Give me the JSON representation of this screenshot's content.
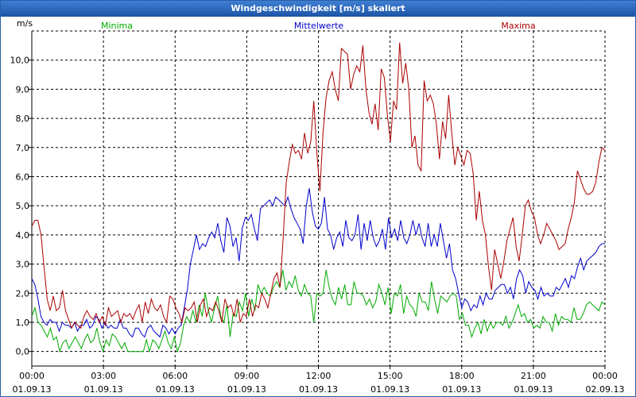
{
  "window": {
    "title": "Windgeschwindigkeit [m/s] skaliert"
  },
  "chart_data": {
    "type": "line",
    "title": "Windgeschwindigkeit [m/s] skaliert",
    "ylabel": "m/s",
    "ylim": [
      -0.5,
      11.0
    ],
    "yticks": [
      0,
      1,
      2,
      3,
      4,
      5,
      6,
      7,
      8,
      9,
      10
    ],
    "ytick_labels": [
      "0,0",
      "1,0",
      "2,0",
      "3,0",
      "4,0",
      "5,0",
      "6,0",
      "7,0",
      "8,0",
      "9,0",
      "10,0"
    ],
    "xlim": [
      0,
      24
    ],
    "xticks": [
      0,
      3,
      6,
      9,
      12,
      15,
      18,
      21,
      24
    ],
    "xtick_times": [
      "00:00",
      "03:00",
      "06:00",
      "09:00",
      "12:00",
      "15:00",
      "18:00",
      "21:00",
      "00:00"
    ],
    "xtick_dates": [
      "01.09.13",
      "01.09.13",
      "01.09.13",
      "01.09.13",
      "01.09.13",
      "01.09.13",
      "01.09.13",
      "01.09.13",
      "02.09.13"
    ],
    "grid": true,
    "series": [
      {
        "name": "Minima",
        "color": "#00aa00",
        "values": [
          1.2,
          1.5,
          1.0,
          0.9,
          0.7,
          0.5,
          0.8,
          0.4,
          0.5,
          0.0,
          0.3,
          0.4,
          0.1,
          0.3,
          0.5,
          0.3,
          0.1,
          0.4,
          0.6,
          0.3,
          0.4,
          0.8,
          0.3,
          0.0,
          0.4,
          0.2,
          0.6,
          0.5,
          0.3,
          0.1,
          0.3,
          0.0,
          0.0,
          0.0,
          0.0,
          0.0,
          0.0,
          0.4,
          0.0,
          0.4,
          0.3,
          0.1,
          0.4,
          0.7,
          0.3,
          0.1,
          0.5,
          0.0,
          0.3,
          0.9,
          1.2,
          1.0,
          1.4,
          1.0,
          1.6,
          1.2,
          2.0,
          1.4,
          1.0,
          1.5,
          1.9,
          1.2,
          1.0,
          1.6,
          0.5,
          1.3,
          1.2,
          1.7,
          1.4,
          2.0,
          1.2,
          1.8,
          1.4,
          2.3,
          2.0,
          2.2,
          2.0,
          1.9,
          2.2,
          2.4,
          2.2,
          2.8,
          2.1,
          2.4,
          2.2,
          2.6,
          2.1,
          1.9,
          2.3,
          2.0,
          1.9,
          1.0,
          2.0,
          1.9,
          2.0,
          2.8,
          2.2,
          1.8,
          1.6,
          2.2,
          1.8,
          2.3,
          1.6,
          1.6,
          2.4,
          2.0,
          2.0,
          1.9,
          1.6,
          1.8,
          1.5,
          1.7,
          2.3,
          2.0,
          1.6,
          2.2,
          1.3,
          2.0,
          1.9,
          2.3,
          1.3,
          1.9,
          1.6,
          1.5,
          1.2,
          2.0,
          1.7,
          1.7,
          1.4,
          2.4,
          1.8,
          1.3,
          1.9,
          1.8,
          1.7,
          1.9,
          2.0,
          1.9,
          1.1,
          1.3,
          0.9,
          0.9,
          0.5,
          0.8,
          1.0,
          0.6,
          1.1,
          0.7,
          1.0,
          0.8,
          1.0,
          1.0,
          0.9,
          1.2,
          0.8,
          1.0,
          1.3,
          1.6,
          1.2,
          1.3,
          1.0,
          1.1,
          0.8,
          0.9,
          0.8,
          1.2,
          1.0,
          1.0,
          0.7,
          1.3,
          0.9,
          1.2,
          1.1,
          1.1,
          1.0,
          1.5,
          1.1,
          1.1,
          1.3,
          1.6,
          1.7,
          1.6,
          1.5,
          1.4,
          1.7,
          1.6
        ]
      },
      {
        "name": "Mittelwerte",
        "color": "#0000cc",
        "values": [
          2.5,
          2.3,
          1.8,
          1.2,
          1.0,
          0.9,
          1.1,
          1.0,
          1.0,
          0.7,
          1.0,
          0.9,
          0.9,
          0.8,
          1.0,
          0.7,
          0.9,
          0.9,
          1.1,
          0.8,
          0.9,
          1.2,
          1.1,
          0.8,
          1.0,
          0.8,
          0.9,
          0.8,
          0.8,
          1.1,
          0.8,
          0.8,
          0.6,
          0.5,
          0.8,
          0.8,
          0.6,
          0.5,
          0.8,
          0.9,
          0.7,
          0.6,
          0.5,
          0.9,
          0.8,
          0.6,
          0.8,
          0.6,
          0.8,
          0.9,
          1.5,
          2.1,
          3.0,
          3.5,
          4.0,
          3.5,
          3.7,
          3.6,
          3.9,
          4.1,
          3.9,
          4.4,
          3.8,
          3.4,
          4.6,
          4.3,
          3.6,
          3.9,
          3.1,
          4.2,
          4.6,
          4.5,
          4.7,
          4.2,
          3.8,
          4.9,
          5.0,
          5.1,
          5.2,
          5.0,
          5.3,
          5.2,
          5.1,
          5.0,
          5.3,
          4.9,
          4.6,
          4.4,
          4.2,
          3.7,
          5.0,
          5.6,
          4.8,
          4.3,
          4.2,
          4.4,
          5.3,
          4.2,
          4.0,
          3.5,
          3.9,
          4.1,
          3.6,
          4.5,
          3.9,
          3.8,
          4.0,
          4.7,
          3.5,
          4.4,
          3.8,
          4.5,
          3.9,
          3.6,
          3.8,
          4.2,
          3.5,
          4.6,
          3.9,
          4.2,
          3.8,
          4.5,
          3.9,
          3.7,
          4.0,
          4.5,
          4.0,
          4.4,
          3.9,
          3.6,
          4.4,
          3.6,
          4.0,
          3.6,
          4.4,
          3.8,
          3.2,
          3.7,
          2.8,
          2.5,
          2.0,
          1.5,
          1.8,
          1.7,
          1.4,
          1.6,
          1.5,
          1.9,
          1.6,
          2.0,
          1.8,
          1.8,
          2.1,
          2.2,
          2.3,
          2.3,
          2.0,
          2.2,
          1.8,
          2.5,
          2.8,
          2.6,
          2.0,
          2.4,
          2.2,
          2.1,
          1.8,
          2.2,
          1.9,
          2.0,
          1.9,
          1.9,
          2.2,
          2.1,
          2.3,
          2.5,
          2.2,
          2.6,
          2.5,
          2.9,
          3.2,
          2.8,
          3.1,
          3.2,
          3.3,
          3.4,
          3.6,
          3.7,
          3.7
        ]
      },
      {
        "name": "Maxima",
        "color": "#aa0000",
        "values": [
          4.3,
          4.5,
          4.5,
          4.0,
          2.9,
          1.8,
          1.4,
          1.9,
          1.4,
          1.5,
          2.1,
          1.4,
          1.1,
          0.8,
          1.0,
          0.9,
          0.8,
          1.2,
          1.4,
          1.2,
          1.1,
          1.3,
          1.0,
          1.2,
          0.9,
          1.5,
          1.2,
          1.3,
          1.4,
          1.0,
          1.3,
          1.2,
          1.3,
          1.1,
          1.4,
          1.6,
          1.0,
          1.7,
          1.3,
          1.8,
          1.5,
          1.4,
          1.6,
          1.2,
          1.0,
          1.9,
          1.8,
          1.5,
          1.3,
          1.0,
          1.5,
          1.4,
          1.5,
          1.7,
          1.0,
          1.6,
          1.8,
          1.2,
          1.5,
          1.4,
          1.7,
          1.4,
          1.0,
          1.8,
          1.5,
          1.6,
          1.2,
          1.8,
          1.0,
          1.3,
          1.2,
          1.8,
          1.2,
          1.6,
          1.5,
          2.0,
          1.8,
          1.5,
          2.0,
          2.5,
          2.7,
          2.2,
          3.9,
          5.8,
          6.5,
          7.1,
          6.8,
          6.9,
          6.6,
          7.5,
          6.8,
          7.2,
          8.6,
          6.8,
          5.5,
          7.5,
          8.7,
          9.3,
          9.6,
          9.0,
          8.6,
          10.4,
          10.3,
          10.2,
          9.0,
          9.5,
          9.8,
          9.6,
          10.5,
          9.0,
          8.2,
          7.8,
          8.5,
          7.6,
          9.7,
          9.4,
          8.1,
          7.2,
          8.6,
          8.3,
          10.6,
          9.2,
          9.9,
          9.0,
          7.0,
          7.4,
          6.4,
          6.2,
          9.3,
          8.6,
          8.8,
          8.5,
          7.8,
          6.6,
          7.9,
          7.3,
          8.8,
          7.5,
          6.4,
          7.0,
          6.7,
          6.4,
          6.9,
          6.8,
          6.1,
          4.5,
          5.5,
          4.5,
          4.0,
          2.9,
          2.1,
          3.5,
          3.0,
          2.5,
          3.1,
          3.8,
          4.2,
          4.6,
          3.6,
          3.1,
          4.0,
          5.0,
          5.2,
          4.8,
          4.6,
          4.0,
          3.7,
          4.0,
          4.4,
          4.2,
          4.0,
          3.8,
          3.5,
          3.6,
          3.7,
          4.2,
          4.6,
          5.1,
          6.2,
          5.9,
          5.6,
          5.4,
          5.4,
          5.5,
          5.8,
          6.5,
          7.0,
          6.9
        ]
      }
    ]
  }
}
